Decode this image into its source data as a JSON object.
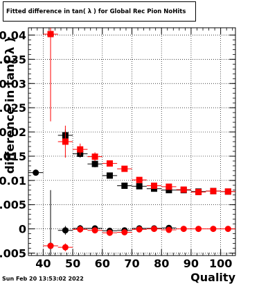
{
  "header": {
    "title": "Fitted difference in tan( λ ) for Global Rec Pion NoHits"
  },
  "footer": {
    "timestamp": "Sun Feb 20 13:53:02 2022"
  },
  "colors": {
    "series_black": "#000000",
    "series_red": "#ff0000",
    "grid": "#000000"
  },
  "chart_data": {
    "type": "scatter",
    "title": "Fitted difference in tan( λ ) for Global Rec Pion NoHits",
    "xlabel": "Quality",
    "ylabel": "difference in tan( λ )",
    "xlim": [
      35,
      105
    ],
    "ylim": [
      -0.0055,
      0.0415
    ],
    "grid": true,
    "x_ticks": [
      40,
      50,
      60,
      70,
      80,
      90,
      100
    ],
    "y_ticks": [
      -0.005,
      0,
      0.005,
      0.01,
      0.015,
      0.02,
      0.025,
      0.03,
      0.035,
      0.04
    ],
    "x_tick_labels": [
      "40",
      "50",
      "60",
      "70",
      "80",
      "90",
      "100"
    ],
    "y_tick_labels": [
      "-0.005",
      "0",
      "0.005",
      "0.01",
      "0.015",
      "0.02",
      "0.025",
      "0.03",
      "0.035",
      "0.04"
    ],
    "series": [
      {
        "color": "#000000",
        "marker": "square",
        "points": [
          {
            "x": 47.5,
            "y": 0.0193,
            "yerr": 0.0012
          },
          {
            "x": 52.5,
            "y": 0.0155,
            "yerr": 0.0008
          },
          {
            "x": 57.5,
            "y": 0.0134,
            "yerr": 0.0007
          },
          {
            "x": 62.5,
            "y": 0.011,
            "yerr": 0.0005
          },
          {
            "x": 67.5,
            "y": 0.0089,
            "yerr": 0.0004
          },
          {
            "x": 72.5,
            "y": 0.0088,
            "yerr": 0.0004
          },
          {
            "x": 77.5,
            "y": 0.0083,
            "yerr": 0.0004
          },
          {
            "x": 82.5,
            "y": 0.008,
            "yerr": 0.0004
          },
          {
            "x": 87.5,
            "y": 0.008,
            "yerr": 0.0003
          },
          {
            "x": 92.5,
            "y": 0.0077,
            "yerr": 0.0003
          },
          {
            "x": 97.5,
            "y": 0.0078,
            "yerr": 0.0003
          },
          {
            "x": 102.5,
            "y": 0.0077,
            "yerr": 0.0003
          }
        ]
      },
      {
        "color": "#000000",
        "marker": "circle",
        "points": [
          {
            "x": 37.5,
            "y": 0.0116,
            "yerr": 0.0002
          },
          {
            "x": 42.5,
            "y": -0.0035,
            "yerr": 0.0115
          },
          {
            "x": 47.5,
            "y": -0.0003,
            "yerr": 0.0009
          },
          {
            "x": 52.5,
            "y": 0.0001,
            "yerr": 0.0007
          },
          {
            "x": 57.5,
            "y": 0.0001,
            "yerr": 0.0005
          },
          {
            "x": 62.5,
            "y": -0.0004,
            "yerr": 0.0004
          },
          {
            "x": 67.5,
            "y": -0.0003,
            "yerr": 0.0003
          },
          {
            "x": 72.5,
            "y": 0.0001,
            "yerr": 0.0003
          },
          {
            "x": 77.5,
            "y": 0.0001,
            "yerr": 0.0003
          },
          {
            "x": 82.5,
            "y": 0.0002,
            "yerr": 0.0003
          }
        ]
      },
      {
        "color": "#ff0000",
        "marker": "square",
        "points": [
          {
            "x": 42.5,
            "y": 0.0402,
            "yerr": 0.018
          },
          {
            "x": 47.5,
            "y": 0.018,
            "yerr": 0.0033
          },
          {
            "x": 52.5,
            "y": 0.0164,
            "yerr": 0.0012
          },
          {
            "x": 57.5,
            "y": 0.0149,
            "yerr": 0.0009
          },
          {
            "x": 62.5,
            "y": 0.0135,
            "yerr": 0.0006
          },
          {
            "x": 67.5,
            "y": 0.0124,
            "yerr": 0.0005
          },
          {
            "x": 72.5,
            "y": 0.0101,
            "yerr": 0.0004
          },
          {
            "x": 77.5,
            "y": 0.0089,
            "yerr": 0.0004
          },
          {
            "x": 82.5,
            "y": 0.0087,
            "yerr": 0.0003
          },
          {
            "x": 87.5,
            "y": 0.0081,
            "yerr": 0.0003
          },
          {
            "x": 92.5,
            "y": 0.0076,
            "yerr": 0.0003
          },
          {
            "x": 97.5,
            "y": 0.0078,
            "yerr": 0.0003
          },
          {
            "x": 102.5,
            "y": 0.0077,
            "yerr": 0.0003
          }
        ]
      },
      {
        "color": "#ff0000",
        "marker": "circle",
        "points": [
          {
            "x": 42.5,
            "y": -0.0035,
            "yerr": 0.0003
          },
          {
            "x": 47.5,
            "y": -0.0038,
            "yerr": 0.0008
          },
          {
            "x": 52.5,
            "y": -0.0001,
            "yerr": 0.0007
          },
          {
            "x": 57.5,
            "y": -0.0003,
            "yerr": 0.0005
          },
          {
            "x": 62.5,
            "y": -0.0008,
            "yerr": 0.0004
          },
          {
            "x": 67.5,
            "y": -0.0007,
            "yerr": 0.0003
          },
          {
            "x": 72.5,
            "y": -0.0001,
            "yerr": 0.0003
          },
          {
            "x": 77.5,
            "y": 0.0,
            "yerr": 0.0003
          },
          {
            "x": 82.5,
            "y": -0.0002,
            "yerr": 0.0003
          },
          {
            "x": 87.5,
            "y": 0.0,
            "yerr": 0.0002
          },
          {
            "x": 92.5,
            "y": 0.0,
            "yerr": 0.0002
          },
          {
            "x": 97.5,
            "y": 0.0,
            "yerr": 0.0002
          },
          {
            "x": 102.5,
            "y": 0.0,
            "yerr": 0.0002
          }
        ]
      }
    ]
  }
}
